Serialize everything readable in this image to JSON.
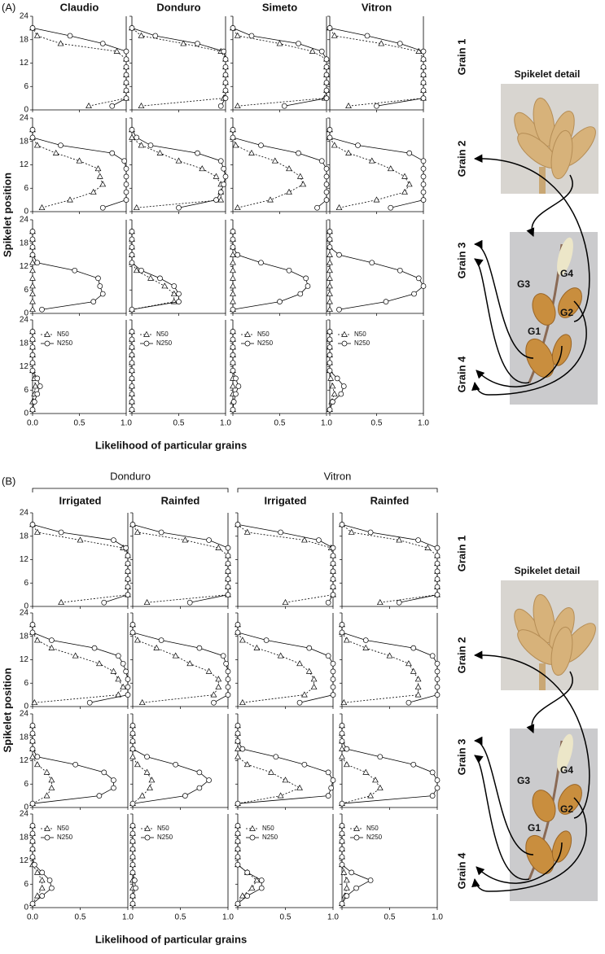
{
  "chart_data": [
    {
      "type": "line",
      "label": "(A)",
      "columns": [
        "Claudio",
        "Donduro",
        "Simeto",
        "Vitron"
      ],
      "rows": [
        "Grain 1",
        "Grain 2",
        "Grain 3",
        "Grain 4"
      ],
      "detail": "Spikelet detail",
      "grains": [
        "G1",
        "G2",
        "G3",
        "G4"
      ],
      "ylabel": "Spikelet position",
      "xlabel": "Likelihood of particular grains",
      "xlim": [
        0,
        1
      ],
      "xticks": [
        {
          "value": 0,
          "label": "0.0"
        },
        {
          "value": 0.5,
          "label": "0.5"
        },
        {
          "value": 1,
          "label": "1.0"
        }
      ],
      "ylim": [
        0,
        24
      ],
      "yticks": [
        0,
        6,
        12,
        18,
        24
      ],
      "series": [
        {
          "name": "N50",
          "marker": "triangle",
          "dashed": true,
          "color": "#000"
        },
        {
          "name": "N250",
          "marker": "circle",
          "dashed": false,
          "color": "#000"
        }
      ],
      "y": [
        1,
        3,
        5,
        7,
        9,
        11,
        13,
        15,
        17,
        19,
        21
      ],
      "values": [
        [
          [
            [
              0.6,
              1,
              1,
              1,
              1,
              1,
              1,
              0.9,
              0.3,
              0.05,
              0
            ],
            [
              0.85,
              1,
              1,
              1,
              1,
              1,
              1,
              1,
              0.75,
              0.4,
              0
            ]
          ],
          [
            [
              0.1,
              0.98,
              1,
              1,
              1,
              1,
              1,
              0.95,
              0.55,
              0.1,
              0
            ],
            [
              0.95,
              1,
              1,
              1,
              1,
              1,
              1,
              0.98,
              0.7,
              0.25,
              0
            ]
          ],
          [
            [
              0.05,
              0.98,
              1,
              1,
              1,
              1,
              1,
              0.85,
              0.5,
              0.05,
              0
            ],
            [
              0.55,
              1,
              1,
              1,
              1,
              1,
              1,
              0.95,
              0.7,
              0.2,
              0
            ]
          ],
          [
            [
              0.2,
              1,
              1,
              1,
              1,
              1,
              1,
              0.95,
              0.55,
              0.05,
              0
            ],
            [
              0.5,
              1,
              1,
              1,
              1,
              1,
              1,
              1,
              0.75,
              0.4,
              0
            ]
          ]
        ],
        [
          [
            [
              0.1,
              0.4,
              0.65,
              0.75,
              0.72,
              0.7,
              0.5,
              0.25,
              0.05,
              0,
              0
            ],
            [
              0.75,
              1,
              1,
              1,
              1,
              1,
              0.98,
              0.85,
              0.3,
              0,
              0
            ]
          ],
          [
            [
              0.05,
              0.95,
              0.95,
              0.95,
              0.9,
              0.75,
              0.5,
              0.3,
              0.1,
              0,
              0
            ],
            [
              0.5,
              0.9,
              0.95,
              0.98,
              1,
              0.98,
              0.95,
              0.7,
              0.2,
              0.05,
              0
            ]
          ],
          [
            [
              0.05,
              0.4,
              0.6,
              0.75,
              0.72,
              0.6,
              0.45,
              0.2,
              0.03,
              0,
              0
            ],
            [
              0.9,
              1,
              1,
              1,
              1,
              1,
              0.95,
              0.7,
              0.3,
              0,
              0
            ]
          ],
          [
            [
              0.1,
              0.5,
              0.8,
              0.85,
              0.8,
              0.65,
              0.45,
              0.2,
              0.05,
              0,
              0
            ],
            [
              0.65,
              1,
              1,
              1,
              1,
              1,
              1,
              0.85,
              0.3,
              0,
              0
            ]
          ]
        ],
        [
          [
            [
              0,
              0,
              0,
              0,
              0,
              0,
              0,
              0,
              0,
              0,
              0
            ],
            [
              0.1,
              0.65,
              0.75,
              0.72,
              0.7,
              0.45,
              0.05,
              0,
              0,
              0,
              0
            ]
          ],
          [
            [
              0,
              0.45,
              0.45,
              0.35,
              0.2,
              0.05,
              0,
              0,
              0,
              0,
              0
            ],
            [
              0,
              0.5,
              0.5,
              0.45,
              0.3,
              0.1,
              0,
              0,
              0,
              0,
              0
            ]
          ],
          [
            [
              0,
              0,
              0,
              0,
              0,
              0,
              0,
              0,
              0,
              0,
              0
            ],
            [
              0,
              0.5,
              0.72,
              0.8,
              0.78,
              0.6,
              0.3,
              0.05,
              0,
              0,
              0
            ]
          ],
          [
            [
              0,
              0,
              0,
              0,
              0,
              0,
              0,
              0,
              0,
              0,
              0
            ],
            [
              0.1,
              0.6,
              0.9,
              1,
              0.95,
              0.75,
              0.45,
              0.1,
              0,
              0,
              0
            ]
          ]
        ],
        [
          [
            [
              0,
              0,
              0.02,
              0.03,
              0.02,
              0,
              0,
              0,
              0,
              0,
              0
            ],
            [
              0,
              0.02,
              0.05,
              0.08,
              0.05,
              0,
              0,
              0,
              0,
              0,
              0
            ]
          ],
          [
            [
              0,
              0,
              0,
              0,
              0,
              0,
              0,
              0,
              0,
              0,
              0
            ],
            [
              0,
              0,
              0,
              0,
              0,
              0,
              0,
              0,
              0,
              0,
              0
            ]
          ],
          [
            [
              0,
              0,
              0,
              0,
              0,
              0,
              0,
              0,
              0,
              0,
              0
            ],
            [
              0,
              0.01,
              0.03,
              0.06,
              0.03,
              0,
              0,
              0,
              0,
              0,
              0
            ]
          ],
          [
            [
              0,
              0.02,
              0.05,
              0.03,
              0.01,
              0,
              0,
              0,
              0,
              0,
              0
            ],
            [
              0,
              0.03,
              0.12,
              0.15,
              0.08,
              0,
              0,
              0,
              0,
              0,
              0
            ]
          ]
        ]
      ]
    },
    {
      "type": "line",
      "label": "(B)",
      "groups": [
        "Donduro",
        "Vitron"
      ],
      "columns": [
        "Irrigated",
        "Rainfed",
        "Irrigated",
        "Rainfed"
      ],
      "rows": [
        "Grain 1",
        "Grain 2",
        "Grain 3",
        "Grain 4"
      ],
      "detail": "Spikelet detail",
      "grains": [
        "G1",
        "G2",
        "G3",
        "G4"
      ],
      "ylabel": "Spikelet position",
      "xlabel": "Likelihood of particular grains",
      "xlim": [
        0,
        1
      ],
      "xticks": [
        {
          "value": 0,
          "label": "0.0"
        },
        {
          "value": 0.5,
          "label": "0.5"
        },
        {
          "value": 1,
          "label": "1.0"
        }
      ],
      "ylim": [
        0,
        24
      ],
      "yticks": [
        0,
        6,
        12,
        18,
        24
      ],
      "series": [
        {
          "name": "N50",
          "marker": "triangle",
          "dashed": true,
          "color": "#000"
        },
        {
          "name": "N250",
          "marker": "circle",
          "dashed": false,
          "color": "#000"
        }
      ],
      "y": [
        1,
        3,
        5,
        7,
        9,
        11,
        13,
        15,
        17,
        19,
        21
      ],
      "values": [
        [
          [
            [
              0.3,
              1,
              1,
              1,
              1,
              1,
              1,
              0.95,
              0.5,
              0.05,
              0
            ],
            [
              0.75,
              1,
              1,
              1,
              1,
              1,
              1,
              0.98,
              0.85,
              0.3,
              0
            ]
          ],
          [
            [
              0.15,
              1,
              1,
              1,
              1,
              1,
              1,
              0.9,
              0.55,
              0.05,
              0
            ],
            [
              0.6,
              1,
              1,
              1,
              1,
              1,
              1,
              1,
              0.8,
              0.3,
              0
            ]
          ],
          [
            [
              0.5,
              1,
              1,
              1,
              1,
              1,
              1,
              0.98,
              0.7,
              0.1,
              0
            ],
            [
              0.95,
              1,
              1,
              1,
              1,
              1,
              1,
              1,
              0.85,
              0.45,
              0
            ]
          ],
          [
            [
              0.4,
              1,
              1,
              1,
              1,
              1,
              1,
              0.9,
              0.6,
              0.1,
              0
            ],
            [
              0.6,
              1,
              1,
              1,
              1,
              1,
              1,
              1,
              0.8,
              0.3,
              0
            ]
          ]
        ],
        [
          [
            [
              0.02,
              0.9,
              0.95,
              0.9,
              0.85,
              0.7,
              0.45,
              0.2,
              0.05,
              0,
              0
            ],
            [
              0.6,
              1,
              1,
              1,
              0.98,
              0.95,
              0.9,
              0.65,
              0.2,
              0,
              0
            ]
          ],
          [
            [
              0.1,
              0.85,
              0.9,
              0.9,
              0.8,
              0.6,
              0.45,
              0.25,
              0.05,
              0,
              0
            ],
            [
              0.85,
              1,
              1,
              1,
              1,
              0.98,
              0.95,
              0.7,
              0.3,
              0,
              0
            ]
          ],
          [
            [
              0.05,
              0.7,
              0.8,
              0.8,
              0.75,
              0.65,
              0.45,
              0.2,
              0.05,
              0,
              0
            ],
            [
              0.65,
              1,
              1,
              1,
              1,
              1,
              0.95,
              0.75,
              0.3,
              0,
              0
            ]
          ],
          [
            [
              0.02,
              0.8,
              0.8,
              0.8,
              0.75,
              0.7,
              0.5,
              0.25,
              0.05,
              0,
              0
            ],
            [
              0.7,
              1,
              1,
              1,
              1,
              1,
              0.95,
              0.75,
              0.25,
              0,
              0
            ]
          ]
        ],
        [
          [
            [
              0,
              0.15,
              0.2,
              0.2,
              0.15,
              0.05,
              0,
              0,
              0,
              0,
              0
            ],
            [
              0,
              0.7,
              0.85,
              0.85,
              0.75,
              0.45,
              0.05,
              0,
              0,
              0,
              0
            ]
          ],
          [
            [
              0,
              0.1,
              0.18,
              0.2,
              0.15,
              0.05,
              0,
              0,
              0,
              0,
              0
            ],
            [
              0,
              0.55,
              0.7,
              0.8,
              0.7,
              0.45,
              0.15,
              0,
              0,
              0,
              0
            ]
          ],
          [
            [
              0,
              0.45,
              0.65,
              0.5,
              0.35,
              0.1,
              0,
              0,
              0,
              0,
              0
            ],
            [
              0,
              0.95,
              0.98,
              1,
              0.95,
              0.7,
              0.4,
              0.05,
              0,
              0,
              0
            ]
          ],
          [
            [
              0,
              0.3,
              0.4,
              0.35,
              0.25,
              0.05,
              0,
              0,
              0,
              0,
              0
            ],
            [
              0,
              0.95,
              1,
              1,
              0.95,
              0.75,
              0.4,
              0.05,
              0,
              0,
              0
            ]
          ]
        ],
        [
          [
            [
              0,
              0.05,
              0.1,
              0.1,
              0.05,
              0,
              0,
              0,
              0,
              0,
              0
            ],
            [
              0,
              0.1,
              0.2,
              0.18,
              0.1,
              0.02,
              0,
              0,
              0,
              0,
              0
            ]
          ],
          [
            [
              0,
              0,
              0,
              0,
              0,
              0,
              0,
              0,
              0,
              0,
              0
            ],
            [
              0,
              0,
              0.03,
              0.02,
              0,
              0,
              0,
              0,
              0,
              0,
              0
            ]
          ],
          [
            [
              0,
              0.05,
              0.15,
              0.2,
              0.1,
              0,
              0,
              0,
              0,
              0,
              0
            ],
            [
              0,
              0.1,
              0.25,
              0.25,
              0.1,
              0,
              0,
              0,
              0,
              0,
              0
            ]
          ],
          [
            [
              0,
              0.03,
              0.05,
              0.05,
              0.02,
              0,
              0,
              0,
              0,
              0,
              0
            ],
            [
              0,
              0.05,
              0.15,
              0.3,
              0.1,
              0,
              0,
              0,
              0,
              0,
              0
            ]
          ]
        ]
      ]
    }
  ]
}
